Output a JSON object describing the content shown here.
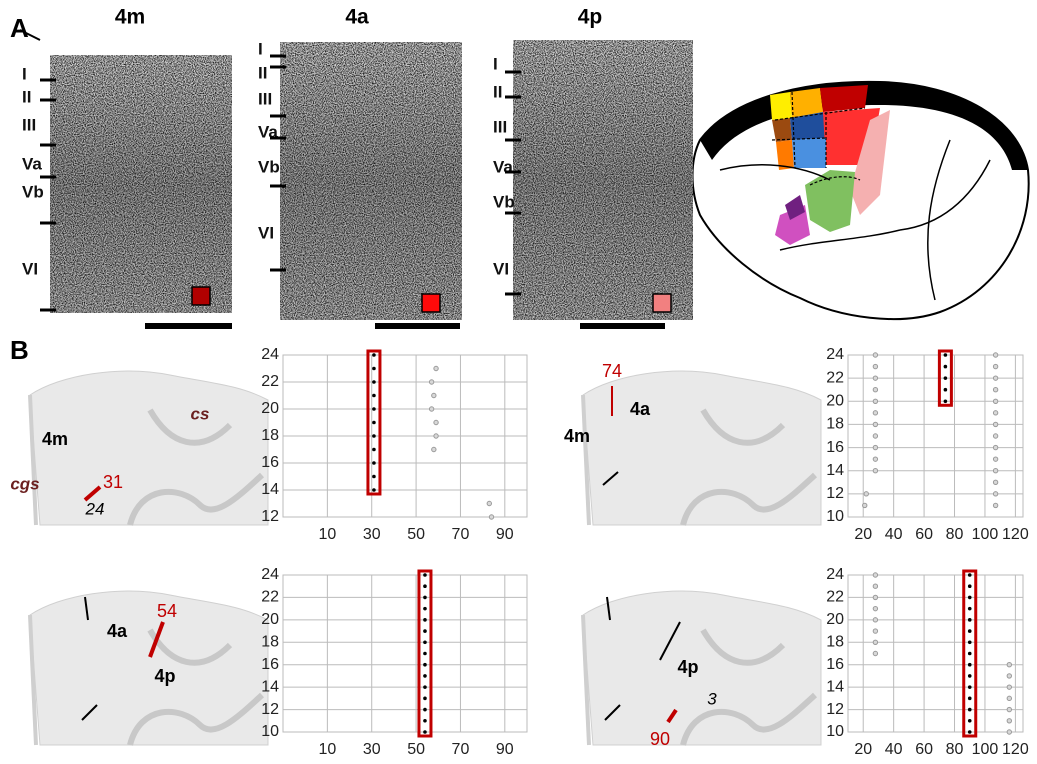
{
  "panel_a": {
    "label": "A",
    "columns": [
      {
        "title": "4m",
        "layers": [
          "I",
          "II",
          "III",
          "Va",
          "Vb",
          "VI"
        ],
        "color": "#b00000"
      },
      {
        "title": "4a",
        "layers": [
          "I",
          "II",
          "III",
          "Va",
          "Vb",
          "VI"
        ],
        "color": "#ff0a0a"
      },
      {
        "title": "4p",
        "layers": [
          "I",
          "II",
          "III",
          "Va",
          "Vb",
          "VI"
        ],
        "color": "#f28080"
      }
    ]
  },
  "panel_b": {
    "label": "B",
    "sections": [
      {
        "labels": [
          "cs",
          "4m",
          "cgs",
          "24"
        ],
        "number": 31
      },
      {
        "labels": [
          "4a",
          "4m"
        ],
        "number": 74
      },
      {
        "labels": [
          "4a",
          "4p"
        ],
        "number": 54
      },
      {
        "labels": [
          "4p",
          "3"
        ],
        "number": 90
      }
    ]
  },
  "chart_data": [
    {
      "type": "scatter",
      "xlim": [
        -10,
        100
      ],
      "ylim": [
        12,
        24
      ],
      "xticks": [
        10,
        30,
        50,
        70,
        90
      ],
      "yticks": [
        12,
        14,
        16,
        18,
        20,
        22,
        24
      ],
      "grid": true,
      "series": [
        {
          "color": "#000000",
          "frame_color": "#c00000",
          "x": [
            31,
            31,
            31,
            31,
            31,
            31,
            31,
            31,
            31,
            31,
            31
          ],
          "values": [
            14,
            15,
            16,
            17,
            18,
            19,
            20,
            21,
            22,
            23,
            24
          ]
        },
        {
          "color": "#9a9a9a",
          "x": [
            59,
            57,
            58,
            57,
            59,
            59,
            58,
            83,
            84
          ],
          "values": [
            23,
            22,
            21,
            20,
            19,
            18,
            17,
            13,
            12
          ]
        }
      ]
    },
    {
      "type": "scatter",
      "xlim": [
        10,
        125
      ],
      "ylim": [
        10,
        24
      ],
      "xticks": [
        20,
        40,
        60,
        80,
        100,
        120
      ],
      "yticks": [
        10,
        12,
        14,
        16,
        18,
        20,
        22,
        24
      ],
      "grid": true,
      "series": [
        {
          "color": "#000000",
          "frame_color": "#c00000",
          "x": [
            74,
            74,
            74,
            74,
            74
          ],
          "values": [
            20,
            21,
            22,
            23,
            24
          ]
        },
        {
          "color": "#9a9a9a",
          "x": [
            28,
            28,
            28,
            28,
            28,
            28,
            28,
            28,
            28,
            28,
            28,
            22,
            21,
            107,
            107,
            107,
            107,
            107,
            107,
            107,
            107,
            107,
            107,
            107,
            107,
            107,
            107
          ],
          "values": [
            14,
            15,
            16,
            17,
            18,
            19,
            20,
            21,
            22,
            23,
            24,
            12,
            11,
            11,
            12,
            13,
            14,
            15,
            16,
            17,
            18,
            19,
            20,
            21,
            22,
            23,
            24
          ]
        }
      ]
    },
    {
      "type": "scatter",
      "xlim": [
        -10,
        100
      ],
      "ylim": [
        10,
        24
      ],
      "xticks": [
        10,
        30,
        50,
        70,
        90
      ],
      "yticks": [
        10,
        12,
        14,
        16,
        18,
        20,
        22,
        24
      ],
      "grid": true,
      "series": [
        {
          "color": "#000000",
          "frame_color": "#c00000",
          "x": [
            54,
            54,
            54,
            54,
            54,
            54,
            54,
            54,
            54,
            54,
            54,
            54,
            54,
            54,
            54
          ],
          "values": [
            10,
            11,
            12,
            13,
            14,
            15,
            16,
            17,
            18,
            19,
            20,
            21,
            22,
            23,
            24
          ]
        }
      ]
    },
    {
      "type": "scatter",
      "xlim": [
        10,
        125
      ],
      "ylim": [
        10,
        24
      ],
      "xticks": [
        20,
        40,
        60,
        80,
        100,
        120
      ],
      "yticks": [
        10,
        12,
        14,
        16,
        18,
        20,
        22,
        24
      ],
      "grid": true,
      "series": [
        {
          "color": "#000000",
          "frame_color": "#c00000",
          "x": [
            90,
            90,
            90,
            90,
            90,
            90,
            90,
            90,
            90,
            90,
            90,
            90,
            90,
            90,
            90
          ],
          "values": [
            10,
            11,
            12,
            13,
            14,
            15,
            16,
            17,
            18,
            19,
            20,
            21,
            22,
            23,
            24
          ]
        },
        {
          "color": "#9a9a9a",
          "x": [
            28,
            28,
            28,
            28,
            28,
            28,
            28,
            28,
            116,
            116,
            116,
            116,
            116,
            116,
            116
          ],
          "values": [
            17,
            18,
            19,
            20,
            21,
            22,
            23,
            24,
            10,
            11,
            12,
            13,
            14,
            15,
            16
          ]
        }
      ]
    }
  ]
}
